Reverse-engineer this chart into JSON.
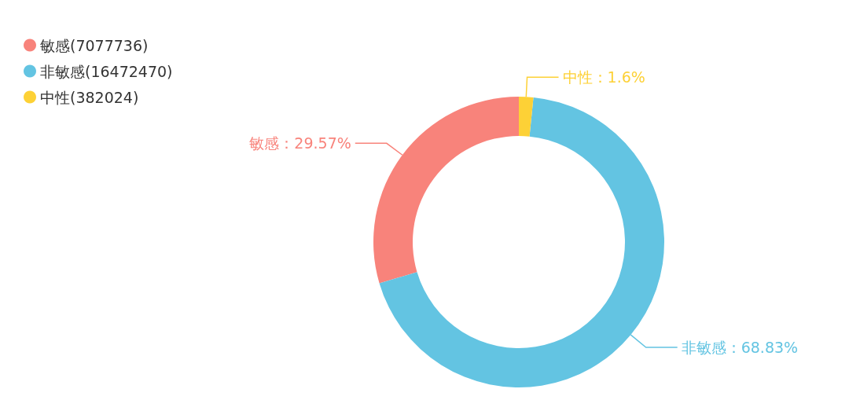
{
  "chart_data": {
    "type": "donut",
    "categories": [
      "敏感(7077736)",
      "非敏感(16472470)",
      "中性(382024)"
    ],
    "values": [
      29.57,
      68.83,
      1.6
    ],
    "colors": [
      "#f8837b",
      "#63c4e2",
      "#fdd136"
    ],
    "value_labels": [
      "敏感：29.57%",
      "非敏感：68.83%",
      "中性：1.6%"
    ],
    "legend": "top left"
  }
}
